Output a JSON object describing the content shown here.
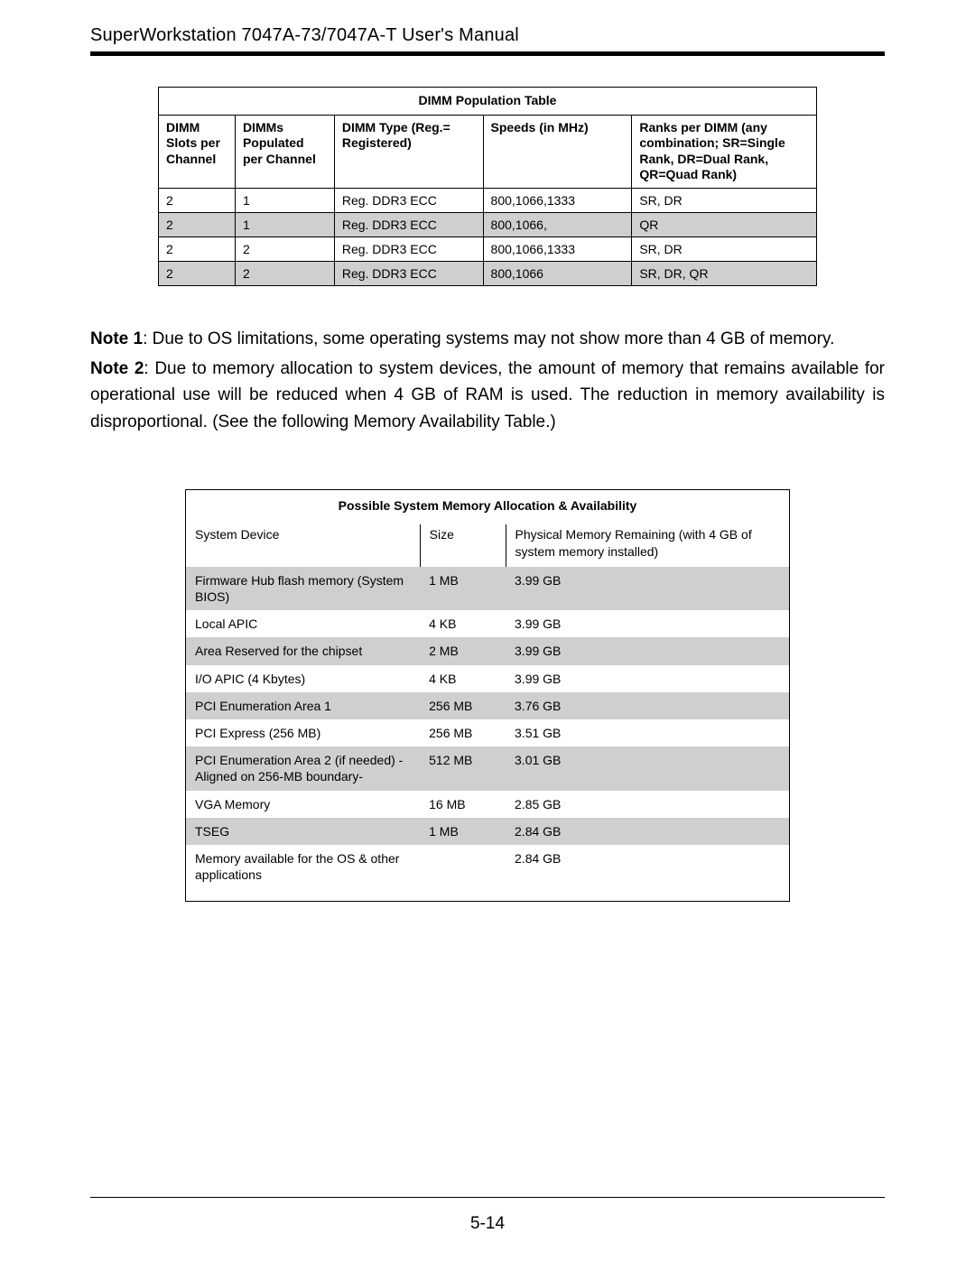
{
  "header": {
    "title_prefix": "S",
    "title_mid": "uper",
    "title_rest": "Workstation 7047A-73/7047A-T User's Manual"
  },
  "dimm_table": {
    "title": "DIMM Population Table",
    "columns": [
      "DIMM Slots per Channel",
      "DIMMs Populated per Channel",
      "DIMM Type (Reg.= Registered)",
      "Speeds (in MHz)",
      "Ranks per DIMM (any combination; SR=Single Rank, DR=Dual Rank, QR=Quad Rank)"
    ],
    "rows": [
      {
        "c1": "2",
        "c2": "1",
        "c3": "Reg. DDR3 ECC",
        "c4": "800,1066,1333",
        "c5": "SR, DR",
        "shade": false
      },
      {
        "c1": "2",
        "c2": "1",
        "c3": "Reg. DDR3 ECC",
        "c4": "800,1066,",
        "c5": "QR",
        "shade": true
      },
      {
        "c1": "2",
        "c2": "2",
        "c3": "Reg. DDR3 ECC",
        "c4": "800,1066,1333",
        "c5": "SR, DR",
        "shade": false
      },
      {
        "c1": "2",
        "c2": "2",
        "c3": "Reg. DDR3 ECC",
        "c4": "800,1066",
        "c5": "SR, DR, QR",
        "shade": true
      }
    ]
  },
  "notes": {
    "n1_label": "Note 1",
    "n1_text": ": Due to OS limitations, some operating systems may not show more than 4 GB of memory.",
    "n2_label": "Note 2",
    "n2_text": ": Due to memory allocation to system devices, the amount of memory that remains available for operational use will be reduced when 4 GB of RAM is used. The reduction in memory availability is disproportional. (See the following Memory Availability Table.)"
  },
  "mem_table": {
    "title": "Possible System Memory Allocation & Availability",
    "columns": [
      "System Device",
      "Size",
      "Physical Memory Remaining (with 4 GB of system memory installed)"
    ],
    "rows": [
      {
        "c1": "Firmware Hub flash memory (System BIOS)",
        "c2": "1 MB",
        "c3": "3.99 GB",
        "shade": true
      },
      {
        "c1": "Local APIC",
        "c2": "4 KB",
        "c3": "3.99 GB",
        "shade": false
      },
      {
        "c1": "Area Reserved for the chipset",
        "c2": "2 MB",
        "c3": "3.99 GB",
        "shade": true
      },
      {
        "c1": "I/O APIC (4 Kbytes)",
        "c2": "4 KB",
        "c3": "3.99 GB",
        "shade": false
      },
      {
        "c1": "PCI Enumeration Area 1",
        "c2": "256 MB",
        "c3": "3.76 GB",
        "shade": true
      },
      {
        "c1": "PCI Express (256 MB)",
        "c2": "256 MB",
        "c3": "3.51 GB",
        "shade": false
      },
      {
        "c1": "PCI Enumeration Area 2 (if needed) -Aligned on 256-MB boundary-",
        "c2": "512 MB",
        "c3": "3.01 GB",
        "shade": true
      },
      {
        "c1": "VGA Memory",
        "c2": "16 MB",
        "c3": "2.85 GB",
        "shade": false
      },
      {
        "c1": "TSEG",
        "c2": "1 MB",
        "c3": "2.84 GB",
        "shade": true
      },
      {
        "c1": "Memory available for the OS & other applications",
        "c2": "",
        "c3": "2.84 GB",
        "shade": false
      }
    ]
  },
  "page_number": "5-14"
}
